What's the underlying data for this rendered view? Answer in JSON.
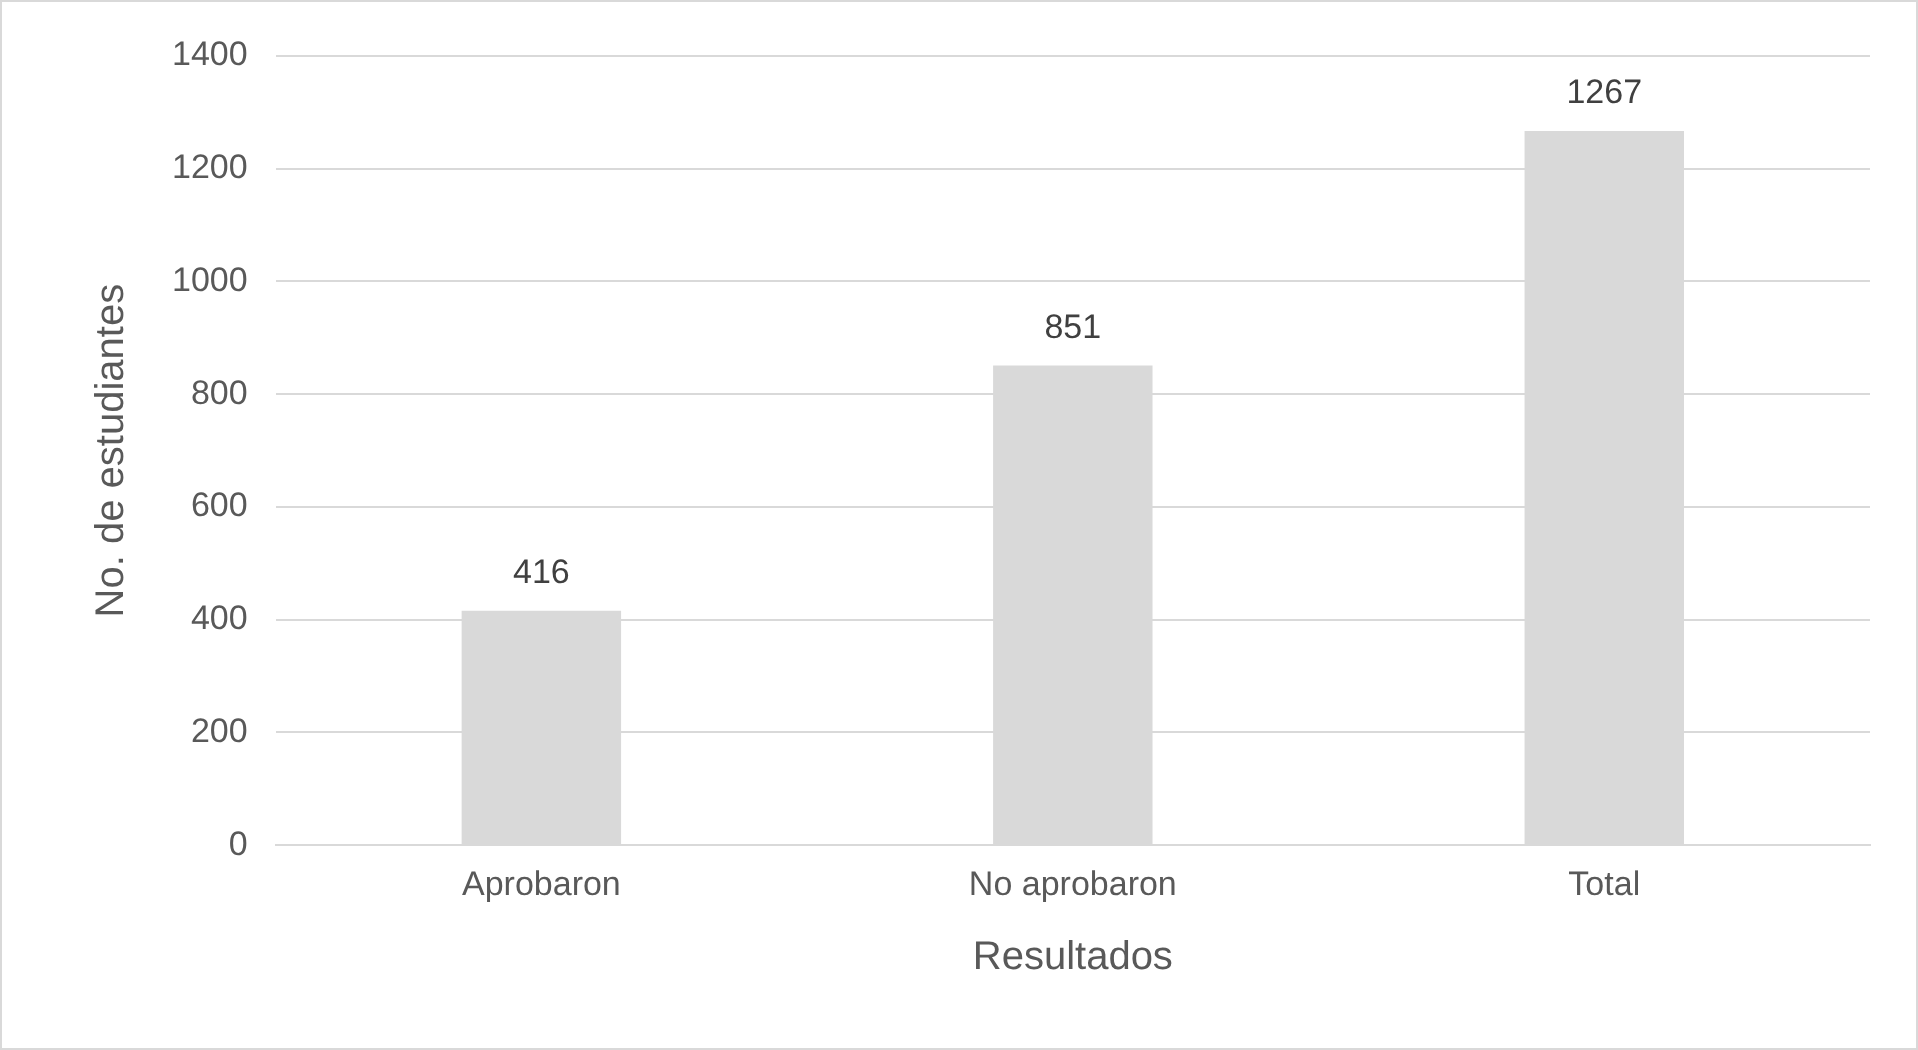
{
  "chart_data": {
    "type": "bar",
    "xlabel": "Resultados",
    "ylabel": "No. de estudiantes",
    "categories": [
      "Aprobaron",
      "No aprobaron",
      "Total"
    ],
    "values": [
      416,
      851,
      1267
    ],
    "color": "#d9d9d9",
    "ylim": [
      0,
      1400
    ],
    "yticks": [
      0,
      200,
      400,
      600,
      800,
      1000,
      1200,
      1400
    ],
    "grid": "y",
    "data_labels": true
  }
}
